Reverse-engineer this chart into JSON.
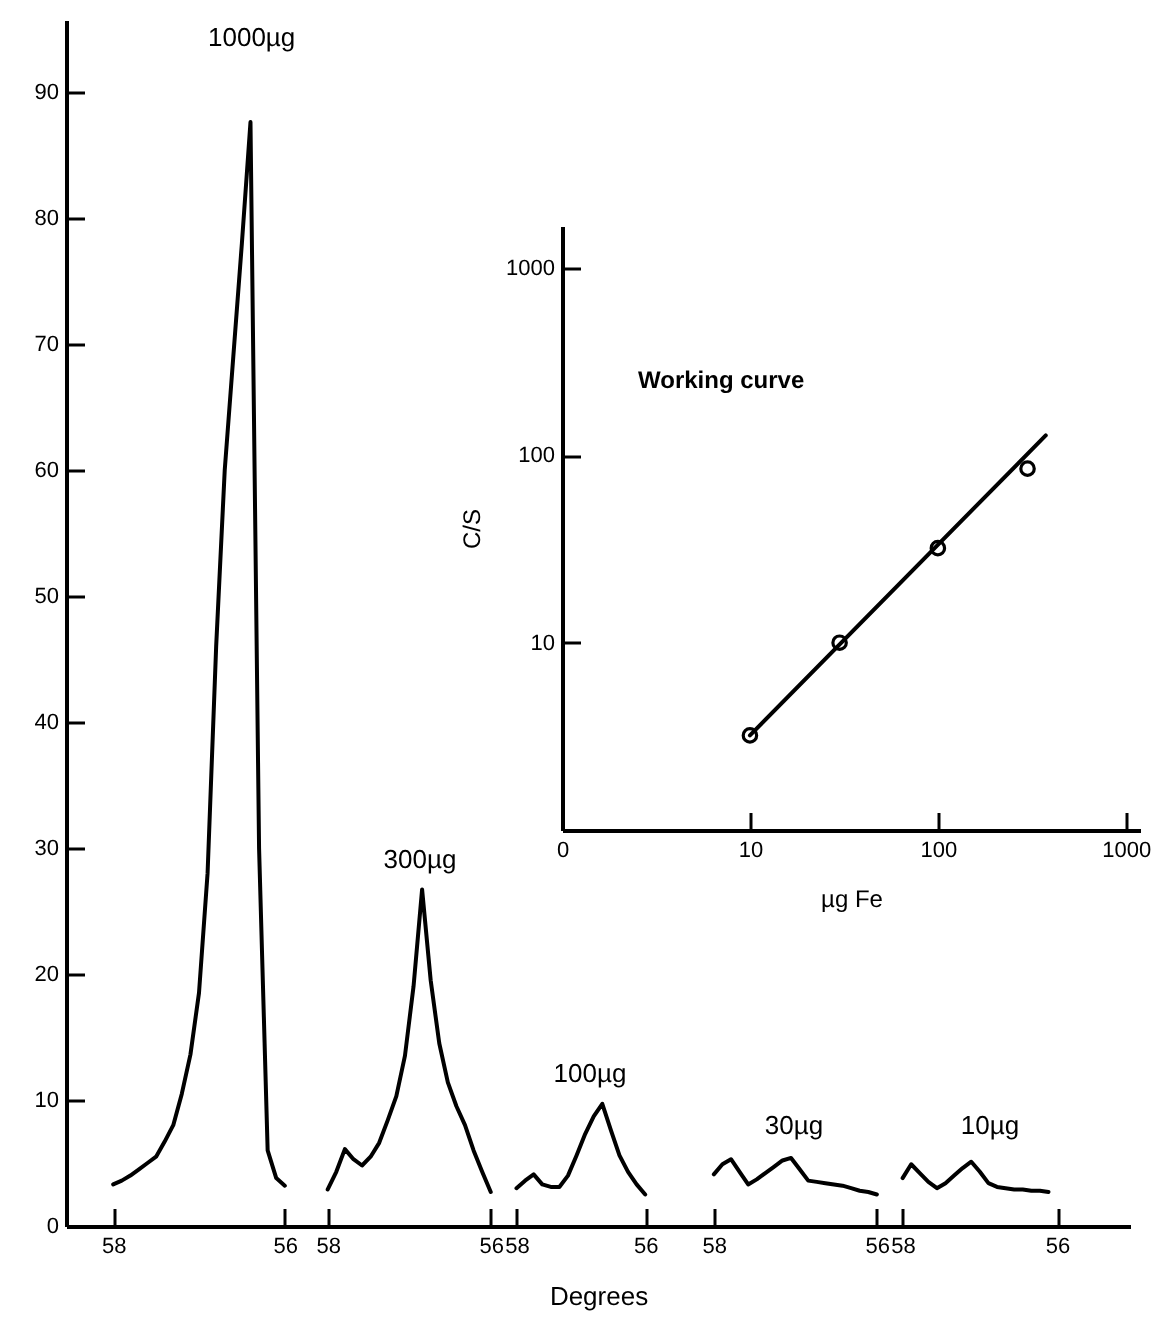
{
  "chart_data": [
    {
      "type": "line",
      "xlabel": "Degrees",
      "ylim": [
        0,
        95.7
      ],
      "yticks": [
        0,
        10,
        20,
        30,
        40,
        50,
        60,
        70,
        80,
        90
      ],
      "categories": [
        null,
        null,
        null,
        null,
        null,
        "58",
        null,
        null,
        null,
        null,
        null,
        null,
        null,
        null,
        null,
        null,
        null,
        null,
        null,
        null,
        null,
        null,
        null,
        null,
        null,
        "56",
        null,
        null,
        null,
        null,
        "58",
        null,
        null,
        null,
        null,
        null,
        null,
        null,
        null,
        null,
        null,
        null,
        null,
        null,
        null,
        null,
        null,
        null,
        null,
        "56",
        null,
        null,
        "58",
        null,
        null,
        null,
        null,
        null,
        null,
        null,
        null,
        null,
        null,
        null,
        null,
        null,
        null,
        "56",
        null,
        null,
        null,
        null,
        null,
        null,
        null,
        "58",
        null,
        null,
        null,
        null,
        null,
        null,
        null,
        null,
        null,
        null,
        null,
        null,
        null,
        null,
        null,
        null,
        null,
        null,
        "56",
        null,
        null,
        "58",
        null,
        null,
        null,
        null,
        null,
        null,
        null,
        null,
        null,
        null,
        null,
        null,
        null,
        null,
        null,
        null,
        null,
        "56",
        null,
        null,
        null,
        null,
        null,
        null,
        null,
        null
      ],
      "series": [
        {
          "color": "#000000",
          "values": [
            null,
            null,
            null,
            null,
            null,
            3.3,
            3.6,
            4.0,
            4.5,
            5.0,
            5.5,
            6.7,
            8.0,
            10.5,
            13.6,
            18.5,
            28,
            46,
            60,
            69,
            78,
            87.6,
            30,
            6.0,
            3.8,
            3.2,
            null,
            null,
            null,
            null,
            2.9,
            4.3,
            6.1,
            5.3,
            4.8,
            5.5,
            6.6,
            8.4,
            10.3,
            13.5,
            19,
            26.7,
            19.5,
            14.5,
            11.4,
            9.5,
            8.0,
            6.0,
            4.3,
            2.7,
            null,
            null,
            3.0,
            3.6,
            4.1,
            3.3,
            3.1,
            3.1,
            4.0,
            5.6,
            7.3,
            8.7,
            9.7,
            7.6,
            5.6,
            4.3,
            3.3,
            2.5,
            null,
            null,
            null,
            null,
            null,
            null,
            null,
            4.1,
            4.9,
            5.3,
            4.3,
            3.3,
            3.7,
            4.2,
            4.7,
            5.2,
            5.4,
            4.5,
            3.6,
            3.5,
            3.4,
            3.3,
            3.2,
            3.0,
            2.8,
            2.7,
            2.5,
            null,
            null,
            3.8,
            4.9,
            4.2,
            3.5,
            3.0,
            3.4,
            4.0,
            4.6,
            5.1,
            4.3,
            3.4,
            3.1,
            3.0,
            2.9,
            2.9,
            2.8,
            2.8,
            2.7,
            null,
            null,
            null,
            null,
            null,
            null,
            null,
            null,
            null
          ]
        }
      ],
      "annotations": [
        "1000µg",
        "300µg",
        "100µg",
        "30µg",
        "10µg"
      ],
      "grid": false
    },
    {
      "type": "scatter",
      "xlabel": "µg Fe",
      "ylabel": "C/S",
      "log": "xy",
      "xlim": [
        0,
        1190
      ],
      "ylim": [
        1,
        1680
      ],
      "xticks": [
        0,
        10,
        100,
        1000
      ],
      "yticks": [
        10,
        100,
        1000
      ],
      "series": [
        {
          "color": "#000000",
          "x": [
            10,
            30,
            100,
            300
          ],
          "values": [
            3.2,
            10,
            32,
            85
          ],
          "marker": "circle"
        },
        {
          "type": "line",
          "color": "#000000",
          "x": [
            10,
            375
          ],
          "values": [
            3.2,
            128
          ]
        }
      ],
      "annotations": [
        "Working curve"
      ],
      "grid": false
    }
  ]
}
